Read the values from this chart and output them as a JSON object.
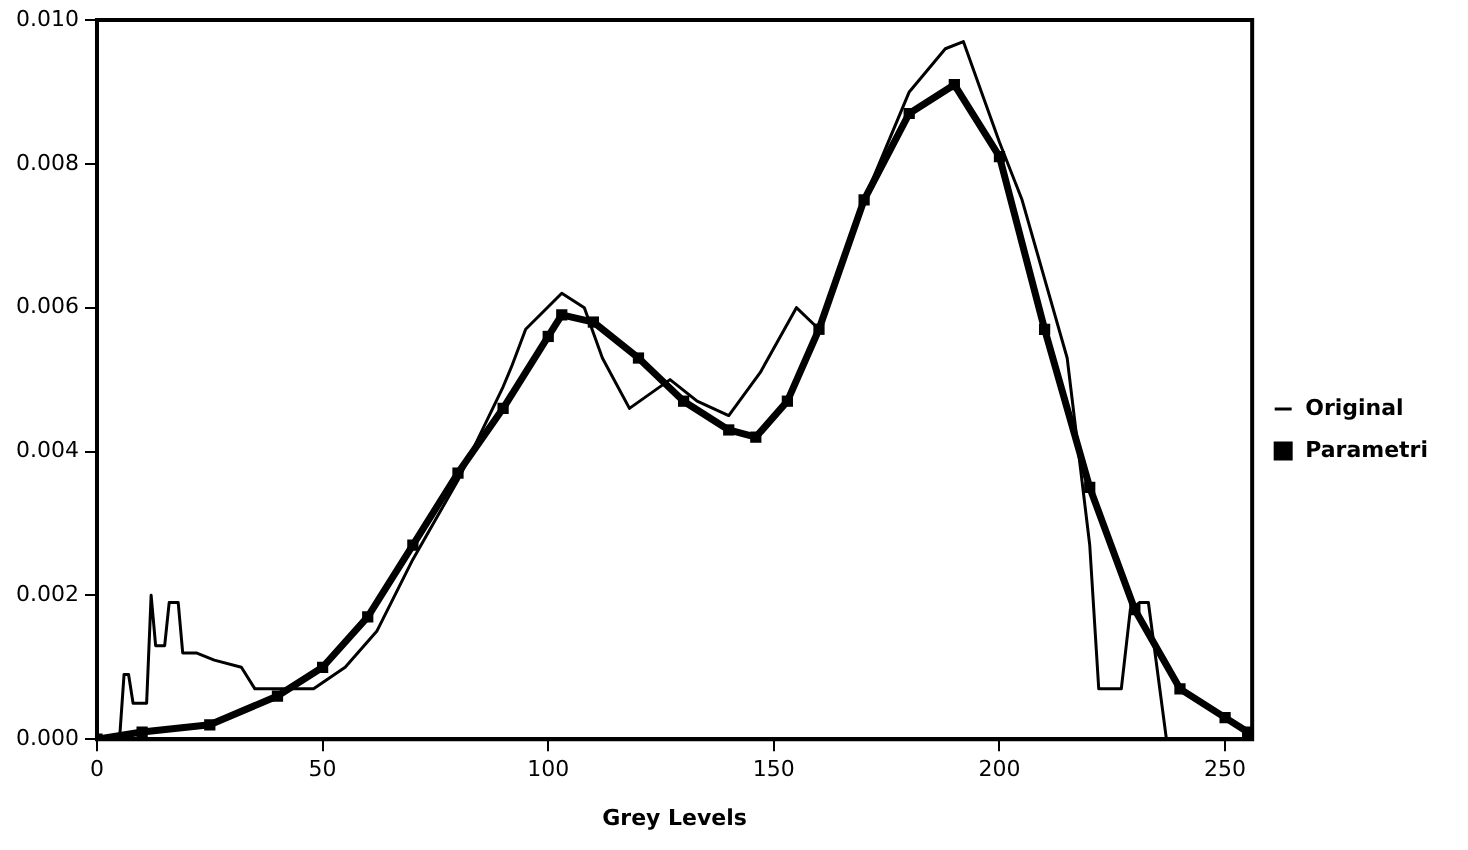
{
  "chart_data": {
    "type": "line",
    "xlabel": "Grey Levels",
    "xlim": [
      0,
      256
    ],
    "xticks": [
      0,
      50,
      100,
      150,
      200,
      250
    ],
    "ylim": [
      0,
      0.01
    ],
    "yticks": [
      {
        "value": 0,
        "label": "0.000"
      },
      {
        "value": 0.002,
        "label": "0.002"
      },
      {
        "value": 0.004,
        "label": "0.004"
      },
      {
        "value": 0.006,
        "label": "0.006"
      },
      {
        "value": 0.008,
        "label": "0.008"
      },
      {
        "value": 0.01,
        "label": "0.010"
      }
    ],
    "grid": false,
    "legend": "right",
    "line_style": "solid",
    "series": [
      {
        "name": "Original",
        "color": "#000000",
        "marker": "none",
        "x": [
          0,
          5,
          6,
          7,
          8,
          11,
          12,
          13,
          15,
          16,
          18,
          19,
          22,
          26,
          32,
          35,
          48,
          55,
          62,
          70,
          80,
          90,
          92,
          95,
          103,
          108,
          112,
          118,
          127,
          133,
          140,
          147,
          155,
          160,
          170,
          180,
          188,
          192,
          196,
          200,
          205,
          210,
          215,
          220,
          222,
          227,
          229,
          231,
          233,
          237,
          256
        ],
        "values": [
          0,
          0,
          0.0009,
          0.0009,
          0.0005,
          0.0005,
          0.002,
          0.0013,
          0.0013,
          0.0019,
          0.0019,
          0.0012,
          0.0012,
          0.0011,
          0.001,
          0.0007,
          0.0007,
          0.001,
          0.0015,
          0.0025,
          0.0036,
          0.0049,
          0.0052,
          0.0057,
          0.0062,
          0.006,
          0.0053,
          0.0046,
          0.005,
          0.0047,
          0.0045,
          0.0051,
          0.006,
          0.0057,
          0.0075,
          0.009,
          0.0096,
          0.0097,
          0.009,
          0.0083,
          0.0075,
          0.0064,
          0.0053,
          0.0027,
          0.0007,
          0.0007,
          0.0018,
          0.0019,
          0.0019,
          0,
          0
        ]
      },
      {
        "name": "Parametri",
        "color": "#000000",
        "marker": "square",
        "x": [
          0,
          10,
          25,
          40,
          50,
          60,
          70,
          80,
          90,
          100,
          103,
          110,
          120,
          130,
          140,
          146,
          153,
          160,
          170,
          180,
          190,
          200,
          210,
          220,
          230,
          240,
          250,
          255
        ],
        "values": [
          0,
          0.0001,
          0.0002,
          0.0006,
          0.001,
          0.0017,
          0.0027,
          0.0037,
          0.0046,
          0.0056,
          0.0059,
          0.0058,
          0.0053,
          0.0047,
          0.0043,
          0.0042,
          0.0047,
          0.0057,
          0.0075,
          0.0087,
          0.0091,
          0.0081,
          0.0057,
          0.0035,
          0.0018,
          0.0007,
          0.0003,
          0.0001
        ]
      }
    ]
  }
}
